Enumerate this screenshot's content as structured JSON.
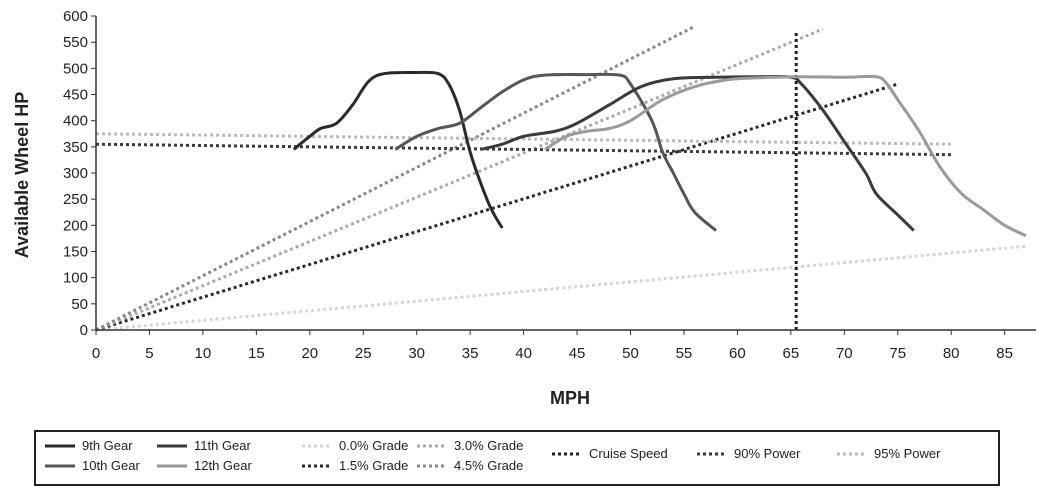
{
  "chart_data": {
    "type": "line",
    "xlabel": "MPH",
    "ylabel": "Available Wheel HP",
    "xlim": [
      0,
      87
    ],
    "ylim": [
      0,
      600
    ],
    "x_ticks": [
      0,
      5,
      10,
      15,
      20,
      25,
      30,
      35,
      40,
      45,
      50,
      55,
      60,
      65,
      70,
      75,
      80,
      85
    ],
    "y_ticks": [
      0,
      50,
      100,
      150,
      200,
      250,
      300,
      350,
      400,
      450,
      500,
      550,
      600
    ],
    "legend_position": "bottom",
    "series": [
      {
        "name": "9th Gear",
        "style": "solid",
        "color": "#2a2a2a",
        "points": [
          [
            18.5,
            345
          ],
          [
            20,
            370
          ],
          [
            21,
            385
          ],
          [
            22.5,
            395
          ],
          [
            24,
            430
          ],
          [
            25.5,
            475
          ],
          [
            27,
            490
          ],
          [
            30,
            492
          ],
          [
            32,
            490
          ],
          [
            33,
            470
          ],
          [
            34,
            420
          ],
          [
            35,
            340
          ],
          [
            36,
            280
          ],
          [
            37,
            230
          ],
          [
            38,
            195
          ]
        ]
      },
      {
        "name": "10th Gear",
        "style": "solid",
        "color": "#555555",
        "points": [
          [
            28,
            345
          ],
          [
            30,
            370
          ],
          [
            32,
            385
          ],
          [
            34,
            395
          ],
          [
            36,
            425
          ],
          [
            38,
            455
          ],
          [
            40,
            478
          ],
          [
            42,
            487
          ],
          [
            46,
            488
          ],
          [
            49,
            487
          ],
          [
            50,
            470
          ],
          [
            52,
            400
          ],
          [
            53,
            340
          ],
          [
            54,
            300
          ],
          [
            55,
            260
          ],
          [
            56,
            225
          ],
          [
            58,
            190
          ]
        ]
      },
      {
        "name": "11th Gear",
        "style": "solid",
        "color": "#3a3a3a",
        "points": [
          [
            36,
            345
          ],
          [
            38,
            355
          ],
          [
            40,
            370
          ],
          [
            43,
            380
          ],
          [
            45,
            395
          ],
          [
            48,
            430
          ],
          [
            51,
            465
          ],
          [
            54,
            480
          ],
          [
            58,
            483
          ],
          [
            62,
            484
          ],
          [
            65,
            483
          ],
          [
            66,
            470
          ],
          [
            68,
            420
          ],
          [
            70,
            360
          ],
          [
            72,
            300
          ],
          [
            73,
            260
          ],
          [
            75,
            220
          ],
          [
            76.5,
            190
          ]
        ]
      },
      {
        "name": "12th Gear",
        "style": "solid",
        "color": "#9a9a9a",
        "points": [
          [
            42,
            345
          ],
          [
            44,
            370
          ],
          [
            46,
            380
          ],
          [
            48,
            385
          ],
          [
            50,
            400
          ],
          [
            53,
            440
          ],
          [
            56,
            465
          ],
          [
            59,
            478
          ],
          [
            62,
            482
          ],
          [
            66,
            484
          ],
          [
            70,
            483
          ],
          [
            73,
            484
          ],
          [
            74,
            470
          ],
          [
            75,
            440
          ],
          [
            77,
            380
          ],
          [
            79,
            310
          ],
          [
            81,
            260
          ],
          [
            83,
            230
          ],
          [
            85,
            200
          ],
          [
            87,
            180
          ]
        ]
      },
      {
        "name": "0.0% Grade",
        "style": "dotted",
        "color": "#d5d5d5",
        "points": [
          [
            0,
            0
          ],
          [
            87,
            160
          ]
        ]
      },
      {
        "name": "1.5% Grade",
        "style": "dotted",
        "color": "#2a2a2a",
        "points": [
          [
            0,
            0
          ],
          [
            75,
            470
          ]
        ]
      },
      {
        "name": "3.0% Grade",
        "style": "dotted",
        "color": "#aaaaaa",
        "points": [
          [
            0,
            0
          ],
          [
            68,
            575
          ]
        ]
      },
      {
        "name": "4.5% Grade",
        "style": "dotted",
        "color": "#888888",
        "points": [
          [
            0,
            0
          ],
          [
            56,
            580
          ]
        ]
      },
      {
        "name": "Cruise Speed",
        "style": "dotted",
        "color": "#222222",
        "points": [
          [
            65.5,
            0
          ],
          [
            65.5,
            570
          ]
        ]
      },
      {
        "name": "90% Power",
        "style": "dotted",
        "color": "#3a3a3a",
        "points": [
          [
            0,
            355
          ],
          [
            80,
            335
          ]
        ]
      },
      {
        "name": "95% Power",
        "style": "dotted",
        "color": "#bbbbbb",
        "points": [
          [
            0,
            375
          ],
          [
            80,
            355
          ]
        ]
      }
    ]
  },
  "legend": [
    {
      "label": "9th Gear",
      "style": "solid",
      "color": "#2a2a2a"
    },
    {
      "label": "10th Gear",
      "style": "solid",
      "color": "#555555"
    },
    {
      "label": "11th Gear",
      "style": "solid",
      "color": "#3a3a3a"
    },
    {
      "label": "12th Gear",
      "style": "solid",
      "color": "#9a9a9a"
    },
    {
      "label": "0.0% Grade",
      "style": "dotted",
      "color": "#d5d5d5"
    },
    {
      "label": "1.5% Grade",
      "style": "dotted",
      "color": "#2a2a2a"
    },
    {
      "label": "3.0% Grade",
      "style": "dotted",
      "color": "#aaaaaa"
    },
    {
      "label": "4.5% Grade",
      "style": "dotted",
      "color": "#888888"
    },
    {
      "label": "Cruise Speed",
      "style": "dotted",
      "color": "#222222"
    },
    {
      "label": "90% Power",
      "style": "dotted",
      "color": "#3a3a3a"
    },
    {
      "label": "95% Power",
      "style": "dotted",
      "color": "#bbbbbb"
    }
  ]
}
